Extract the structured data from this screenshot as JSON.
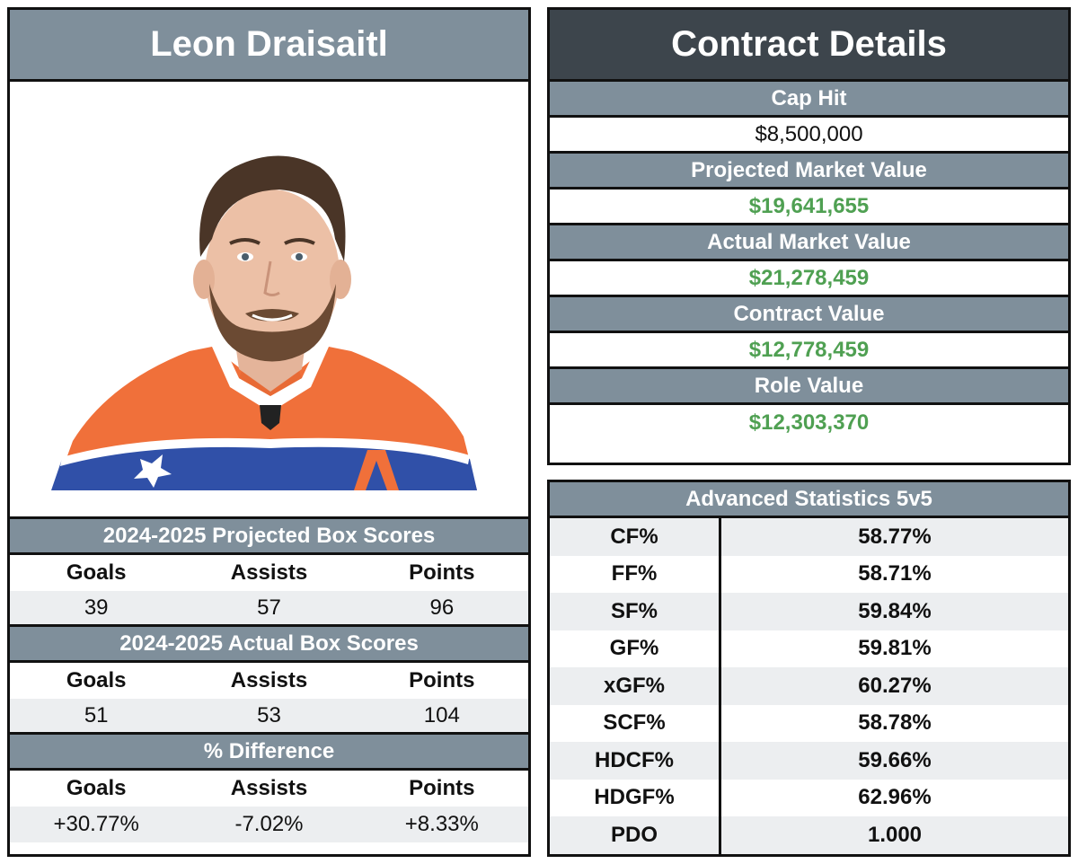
{
  "player": {
    "name": "Leon Draisaitl"
  },
  "projected": {
    "title": "2024-2025 Projected Box Scores",
    "headers": [
      "Goals",
      "Assists",
      "Points"
    ],
    "values": [
      "39",
      "57",
      "96"
    ]
  },
  "actual": {
    "title": "2024-2025 Actual Box Scores",
    "headers": [
      "Goals",
      "Assists",
      "Points"
    ],
    "values": [
      "51",
      "53",
      "104"
    ]
  },
  "difference": {
    "title": "% Difference",
    "headers": [
      "Goals",
      "Assists",
      "Points"
    ],
    "values": [
      "+30.77%",
      "-7.02%",
      "+8.33%"
    ]
  },
  "contract": {
    "title": "Contract Details",
    "items": [
      {
        "label": "Cap Hit",
        "value": "$8,500,000"
      },
      {
        "label": "Projected Market Value",
        "value": "$19,641,655"
      },
      {
        "label": "Actual Market Value",
        "value": "$21,278,459"
      },
      {
        "label": "Contract Value",
        "value": "$12,778,459"
      },
      {
        "label": "Role Value",
        "value": "$12,303,370"
      }
    ]
  },
  "advanced": {
    "title": "Advanced Statistics 5v5",
    "rows": [
      {
        "stat": "CF%",
        "value": "58.77%"
      },
      {
        "stat": "FF%",
        "value": "58.71%"
      },
      {
        "stat": "SF%",
        "value": "59.84%"
      },
      {
        "stat": "GF%",
        "value": "59.81%"
      },
      {
        "stat": "xGF%",
        "value": "60.27%"
      },
      {
        "stat": "SCF%",
        "value": "58.78%"
      },
      {
        "stat": "HDCF%",
        "value": "59.66%"
      },
      {
        "stat": "HDGF%",
        "value": "62.96%"
      },
      {
        "stat": "PDO",
        "value": "1.000"
      }
    ]
  },
  "colors": {
    "header_gray": "#7f8f9b",
    "header_dark": "#3d454c",
    "value_green": "#4fa052",
    "row_alt": "#eceef0",
    "jersey_orange": "#f0703a",
    "jersey_blue": "#3050a8"
  }
}
